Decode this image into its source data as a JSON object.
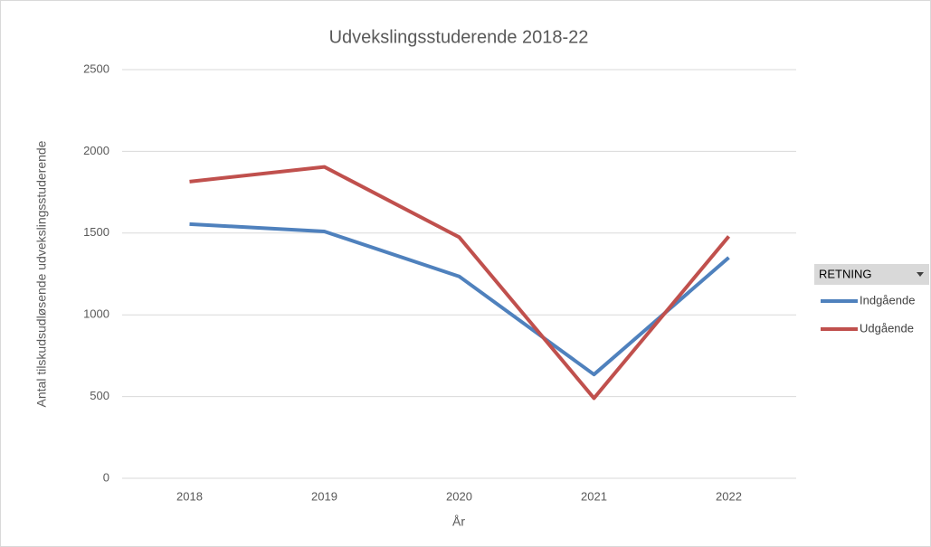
{
  "chart_data": {
    "type": "line",
    "title": "Udvekslingsstuderende 2018-22",
    "x_label": "År",
    "y_label": "Antal tilskudsudløsende udvekslingsstuderende",
    "categories": [
      "2018",
      "2019",
      "2020",
      "2021",
      "2022"
    ],
    "series": [
      {
        "name": "Indgående",
        "color": "#4f81bd",
        "values": [
          1555,
          1510,
          1235,
          635,
          1350
        ]
      },
      {
        "name": "Udgående",
        "color": "#c0504d",
        "values": [
          1815,
          1905,
          1475,
          490,
          1480
        ]
      }
    ],
    "ylim": [
      0,
      2500
    ],
    "yticks": [
      0,
      500,
      1000,
      1500,
      2000,
      2500
    ],
    "grid": true,
    "legend_title": "RETNING",
    "legend_position": "right"
  }
}
